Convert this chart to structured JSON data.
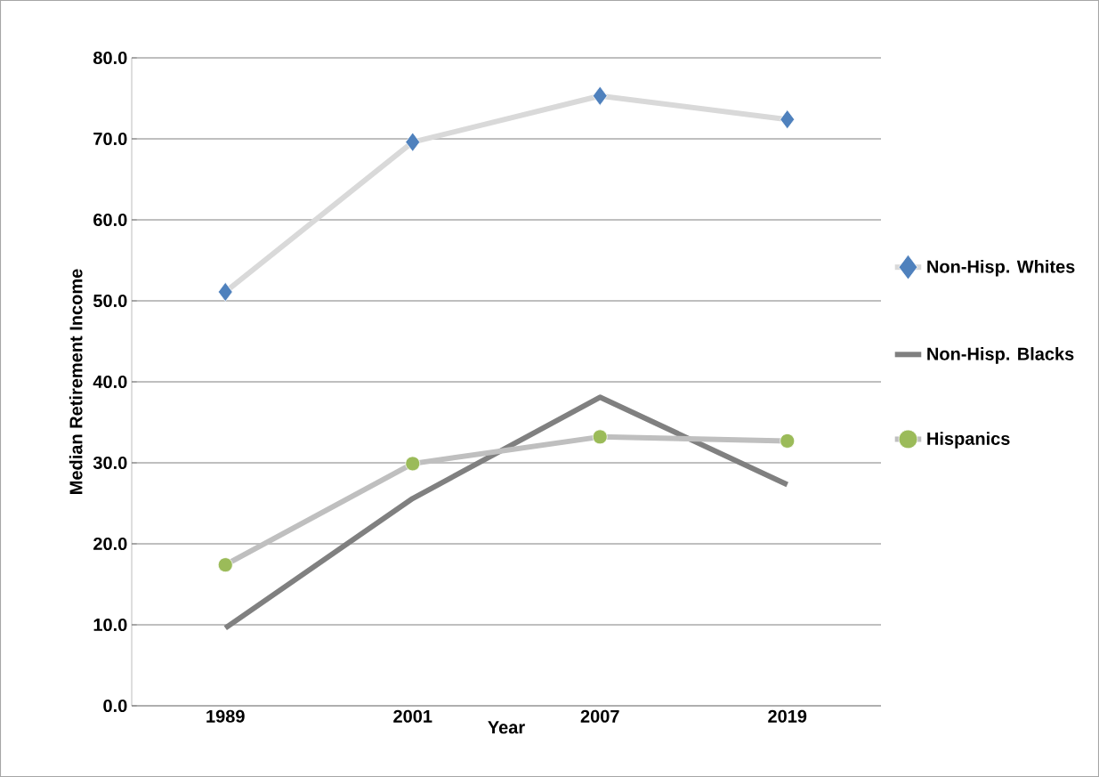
{
  "chart_data": {
    "type": "line",
    "xlabel": "Year",
    "ylabel": "Median Retirement Income",
    "categories": [
      "1989",
      "2001",
      "2007",
      "2019"
    ],
    "series": [
      {
        "name": "Non-Hisp. Whites",
        "color": "#d9d9d9",
        "marker": "diamond",
        "colors": [
          "#4f81bd",
          "#4f81bd",
          "#4f81bd",
          "#4f81bd"
        ],
        "values": [
          51.1,
          69.6,
          75.3,
          72.4
        ]
      },
      {
        "name": "Non-Hisp. Blacks",
        "color": "#808080",
        "marker": "none",
        "values": [
          9.6,
          25.6,
          38.1,
          27.3
        ]
      },
      {
        "name": "Hispanics",
        "color": "#bfbfbf",
        "marker": "circle",
        "colors": [
          "#9bbb59",
          "#9bbb59",
          "#9bbb59",
          "#9bbb59"
        ],
        "values": [
          17.4,
          29.9,
          33.2,
          32.7
        ]
      }
    ],
    "ylim": [
      0,
      80
    ],
    "yticks": [
      {
        "value": 0,
        "label": "0.0"
      },
      {
        "value": 10,
        "label": "10.0"
      },
      {
        "value": 20,
        "label": "20.0"
      },
      {
        "value": 30,
        "label": "30.0"
      },
      {
        "value": 40,
        "label": "40.0"
      },
      {
        "value": 50,
        "label": "50.0"
      },
      {
        "value": 60,
        "label": "60.0"
      },
      {
        "value": 70,
        "label": "70.0"
      },
      {
        "value": 80,
        "label": "80.0"
      }
    ],
    "grid": "y",
    "legend": "right"
  }
}
